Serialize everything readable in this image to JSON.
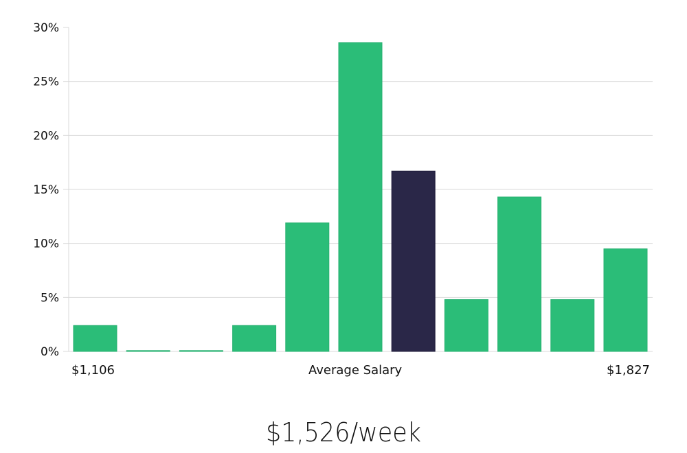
{
  "chart_data": {
    "type": "bar",
    "title": "",
    "xlabel": "Average Salary",
    "ylabel": "",
    "ylim": [
      0,
      30
    ],
    "yticks": [
      "0%",
      "5%",
      "10%",
      "15%",
      "20%",
      "25%",
      "30%"
    ],
    "x_range_labels": {
      "min": "$1,106",
      "max": "$1,827"
    },
    "categories": [
      "bin1",
      "bin2",
      "bin3",
      "bin4",
      "bin5",
      "bin6",
      "bin7",
      "bin8",
      "bin9",
      "bin10",
      "bin11"
    ],
    "values": [
      2.4,
      0,
      0,
      2.4,
      11.9,
      28.6,
      16.7,
      4.8,
      14.3,
      4.8,
      9.5
    ],
    "highlight_index": 6,
    "colors": {
      "bar": "#2bbd78",
      "bar_highlight": "#2a2748",
      "grid": "#d9d9d9"
    },
    "grid": true,
    "legend": null
  },
  "labels": {
    "x_min": "$1,106",
    "x_center": "Average Salary",
    "x_max": "$1,827",
    "headline": "$1,526/week"
  }
}
